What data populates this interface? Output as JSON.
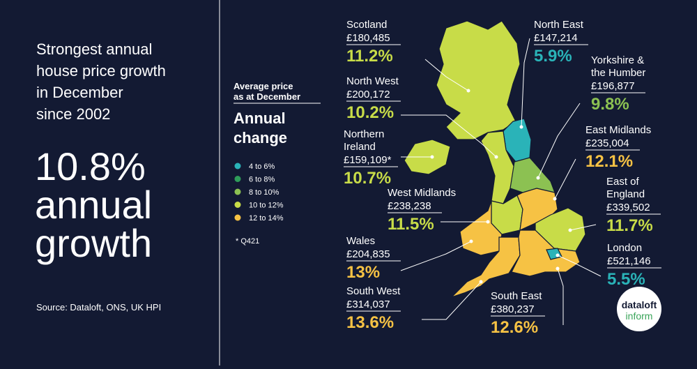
{
  "headline": [
    "Strongest annual",
    "house price growth",
    "in December",
    "since 2002"
  ],
  "big_stat": [
    "10.8%",
    "annual",
    "growth"
  ],
  "source": "Source: Dataloft, ONS, UK HPI",
  "legend": {
    "subtitle": [
      "Average price",
      "as at December"
    ],
    "title": [
      "Annual",
      "change"
    ],
    "items": [
      {
        "label": "4 to 6%",
        "color": "#2ab3b8"
      },
      {
        "label": "6 to 8%",
        "color": "#2f9d5a"
      },
      {
        "label": "8 to 10%",
        "color": "#8cc152"
      },
      {
        "label": "10 to 12%",
        "color": "#c8dc48"
      },
      {
        "label": "12 to 14%",
        "color": "#f6c244"
      }
    ],
    "note": "* Q421"
  },
  "regions": [
    {
      "name": [
        "Scotland"
      ],
      "price": "£180,485",
      "change": "11.2%",
      "color": "#c8dc48"
    },
    {
      "name": [
        "North West"
      ],
      "price": "£200,172",
      "change": "10.2%",
      "color": "#c8dc48"
    },
    {
      "name": [
        "Northern",
        "Ireland"
      ],
      "price": "£159,109*",
      "change": "10.7%",
      "color": "#c8dc48"
    },
    {
      "name": [
        "West Midlands"
      ],
      "price": "£238,238",
      "change": "11.5%",
      "color": "#c8dc48"
    },
    {
      "name": [
        "Wales"
      ],
      "price": "£204,835",
      "change": "13%",
      "color": "#f6c244"
    },
    {
      "name": [
        "South West"
      ],
      "price": "£314,037",
      "change": "13.6%",
      "color": "#f6c244"
    },
    {
      "name": [
        "South East"
      ],
      "price": "£380,237",
      "change": "12.6%",
      "color": "#f6c244"
    },
    {
      "name": [
        "London"
      ],
      "price": "£521,146",
      "change": "5.5%",
      "color": "#2ab3b8"
    },
    {
      "name": [
        "East of",
        "England"
      ],
      "price": "£339,502",
      "change": "11.7%",
      "color": "#c8dc48"
    },
    {
      "name": [
        "East Midlands"
      ],
      "price": "£235,004",
      "change": "12.1%",
      "color": "#f6c244"
    },
    {
      "name": [
        "Yorkshire &",
        "the Humber"
      ],
      "price": "£196,877",
      "change": "9.8%",
      "color": "#8cc152"
    },
    {
      "name": [
        "North East"
      ],
      "price": "£147,214",
      "change": "5.9%",
      "color": "#2ab3b8"
    }
  ],
  "logo": [
    "dataloft",
    "inform"
  ]
}
